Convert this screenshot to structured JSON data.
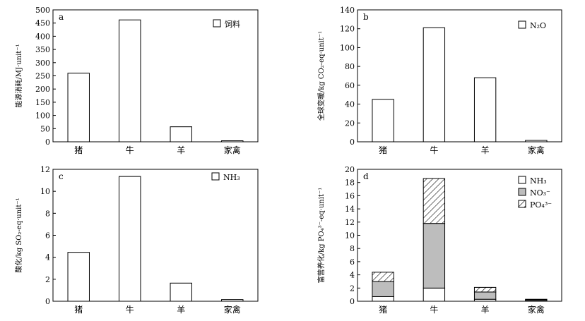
{
  "chart_data": [
    {
      "id": "a",
      "panel_label": "a",
      "type": "bar",
      "categories": [
        "猪",
        "牛",
        "羊",
        "家禽"
      ],
      "series": [
        {
          "name": "饲料",
          "values": [
            260,
            462,
            57,
            4
          ]
        }
      ],
      "ylabel": "能源消耗/MJ·unit⁻¹",
      "ylim": [
        0,
        500
      ],
      "yticks": [
        0,
        50,
        100,
        150,
        200,
        250,
        300,
        350,
        400,
        450,
        500
      ],
      "legend": "top-right",
      "grid": false
    },
    {
      "id": "b",
      "panel_label": "b",
      "type": "bar",
      "categories": [
        "猪",
        "牛",
        "羊",
        "家禽"
      ],
      "series": [
        {
          "name": "N₂O",
          "values": [
            45,
            121,
            68,
            1.5
          ]
        }
      ],
      "ylabel": "全球变暖/kg CO₂-eq·unit⁻¹",
      "ylim": [
        0,
        140
      ],
      "yticks": [
        0,
        20,
        40,
        60,
        80,
        100,
        120,
        140
      ],
      "legend": "top-right",
      "grid": false
    },
    {
      "id": "c",
      "panel_label": "c",
      "type": "bar",
      "categories": [
        "猪",
        "牛",
        "羊",
        "家禽"
      ],
      "series": [
        {
          "name": "NH₃",
          "values": [
            4.45,
            11.35,
            1.65,
            0.15
          ]
        }
      ],
      "ylabel": "酸化/kg SO₂-eq·unit⁻¹",
      "ylim": [
        0,
        12
      ],
      "yticks": [
        0,
        2,
        4,
        6,
        8,
        10,
        12
      ],
      "legend": "top-right",
      "grid": false
    },
    {
      "id": "d",
      "panel_label": "d",
      "type": "bar",
      "stacked": true,
      "categories": [
        "猪",
        "牛",
        "羊",
        "家禽"
      ],
      "series": [
        {
          "name": "NH₃",
          "values": [
            0.7,
            2.0,
            0.3,
            0.05
          ],
          "pattern": "white"
        },
        {
          "name": "NO₃⁻",
          "values": [
            2.3,
            9.8,
            1.1,
            0.15
          ],
          "pattern": "gray"
        },
        {
          "name": "PO₄³⁻",
          "values": [
            1.4,
            6.8,
            0.7,
            0.1
          ],
          "pattern": "hatch"
        }
      ],
      "ylabel": "富营养化/kg PO₄³⁻-eq·unit⁻¹",
      "ylim": [
        0,
        20
      ],
      "yticks": [
        0,
        2,
        4,
        6,
        8,
        10,
        12,
        14,
        16,
        18,
        20
      ],
      "legend": "top-right",
      "grid": false
    }
  ]
}
